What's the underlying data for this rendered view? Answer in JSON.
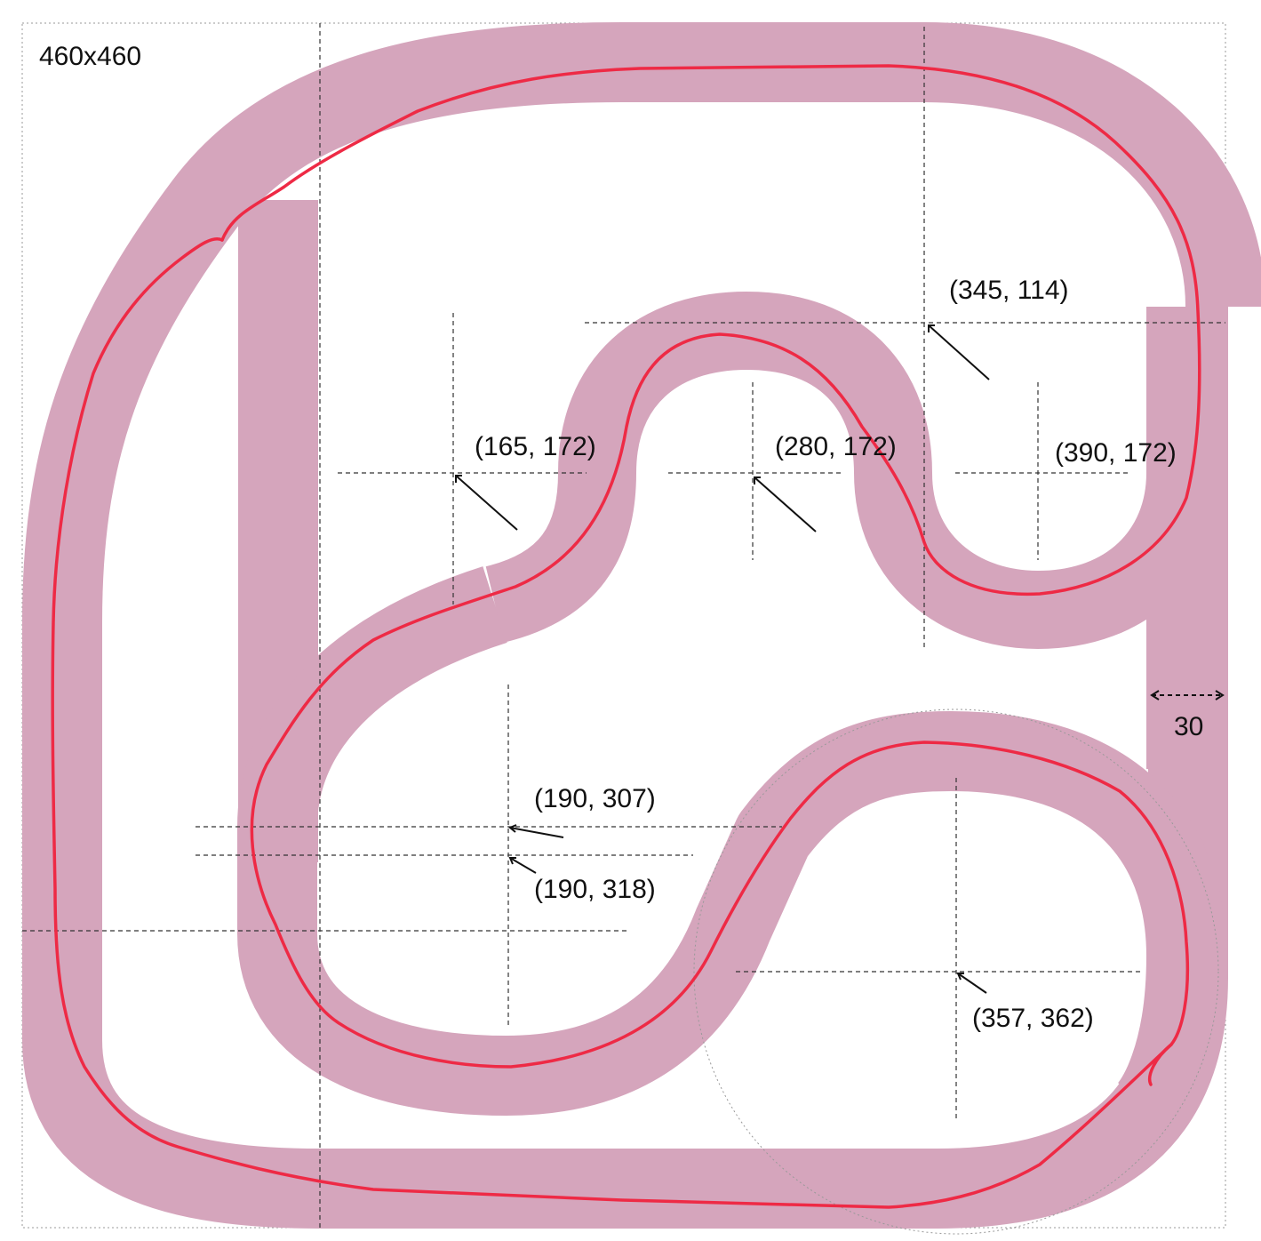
{
  "diagram": {
    "canvas_label": "460x460",
    "width_label": "30",
    "points": [
      {
        "label": "(345, 114)"
      },
      {
        "label": "(165, 172)"
      },
      {
        "label": "(280, 172)"
      },
      {
        "label": "(390, 172)"
      },
      {
        "label": "(190, 307)"
      },
      {
        "label": "(190, 318)"
      },
      {
        "label": "(357, 362)"
      }
    ],
    "colors": {
      "track": "#d5a5bc",
      "path": "#ee2a45",
      "guides": "#333333"
    }
  }
}
